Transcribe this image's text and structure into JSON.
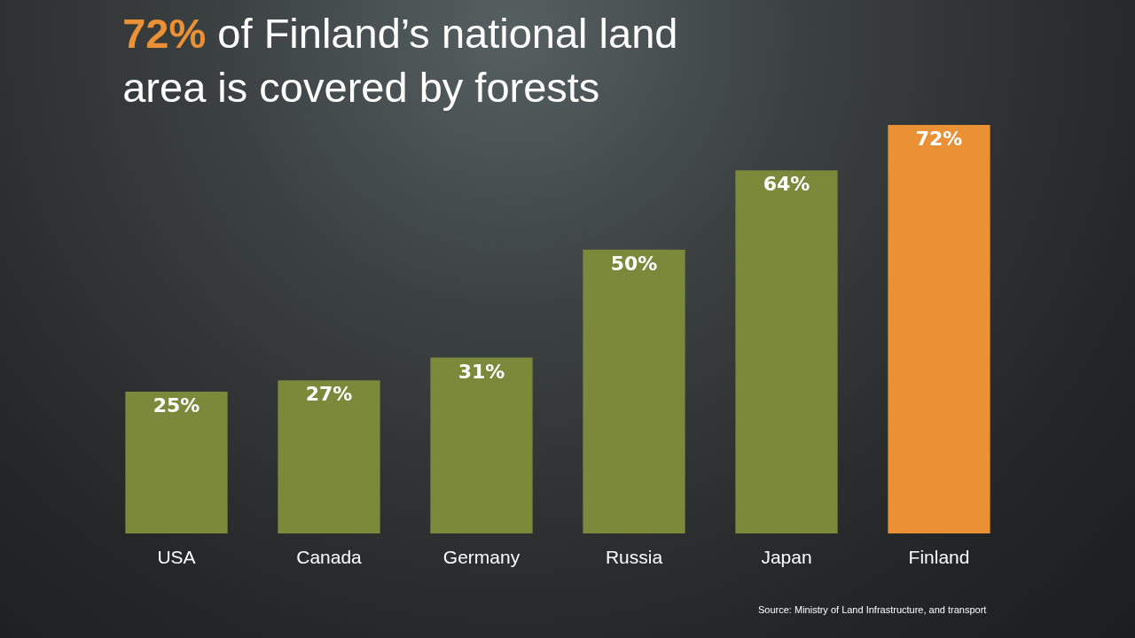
{
  "chart_data": {
    "type": "bar",
    "title": "72% of Finland’s national land area is covered by forests",
    "categories": [
      "USA",
      "Canada",
      "Germany",
      "Russia",
      "Japan",
      "Finland"
    ],
    "values": [
      25,
      27,
      31,
      50,
      64,
      72
    ],
    "value_labels": [
      "25%",
      "27%",
      "31%",
      "50%",
      "64%",
      "72%"
    ],
    "colors": [
      "#7c893b",
      "#7c893b",
      "#7c893b",
      "#7c893b",
      "#7c893b",
      "#ea9035"
    ],
    "annotations": [
      "Source: Ministry of Land Infrastructure, and transport"
    ]
  }
}
